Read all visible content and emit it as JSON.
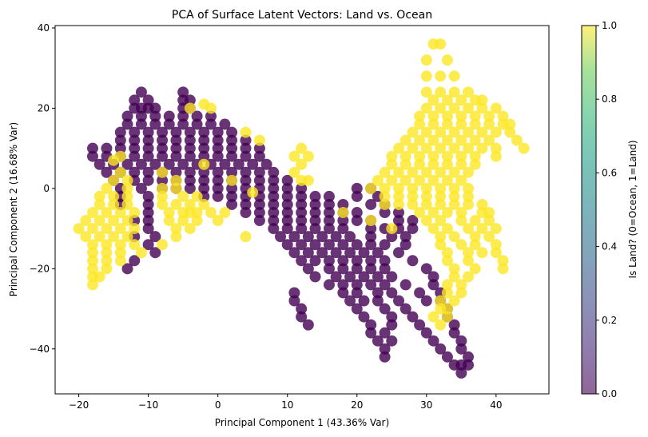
{
  "chart_data": {
    "type": "scatter",
    "title": "PCA of Surface Latent Vectors: Land vs. Ocean",
    "xlabel": "Principal Component 1 (43.36% Var)",
    "ylabel": "Principal Component 2 (16.68% Var)",
    "xlim": [
      -23.4,
      47.6
    ],
    "ylim": [
      -51.2,
      40.6
    ],
    "xticks": [
      -20,
      -10,
      0,
      10,
      20,
      30,
      40
    ],
    "yticks": [
      -40,
      -20,
      0,
      20,
      40
    ],
    "grid": false,
    "colorbar": {
      "label": "Is Land? (0=Ocean, 1=Land)",
      "range": [
        0.0,
        1.0
      ],
      "ticks": [
        "0.0",
        "0.2",
        "0.4",
        "0.6",
        "0.8",
        "1.0"
      ],
      "colormap": "viridis",
      "alpha": 0.6
    },
    "series": [
      {
        "value": 0,
        "color": "#440154",
        "rows_y_x": [
          [
            24,
            [
              -11,
              -5
            ]
          ],
          [
            22,
            [
              -12,
              -10,
              -5,
              -4
            ]
          ],
          [
            20,
            [
              -12,
              -11,
              -10,
              -9,
              -5,
              -4
            ]
          ],
          [
            18,
            [
              -13,
              -11,
              -9,
              -7,
              -5,
              -3,
              -1
            ]
          ],
          [
            16,
            [
              -13,
              -11,
              -9,
              -7,
              -5,
              -3,
              -1,
              1
            ]
          ],
          [
            14,
            [
              -14,
              -12,
              -10,
              -8,
              -6,
              -4,
              -2,
              0,
              2
            ]
          ],
          [
            12,
            [
              -14,
              -12,
              -10,
              -8,
              -6,
              -4,
              -2,
              0,
              2,
              4
            ]
          ],
          [
            10,
            [
              -18,
              -16,
              -14,
              -12,
              -10,
              -8,
              -6,
              -4,
              -2,
              0,
              2,
              4,
              6
            ]
          ],
          [
            8,
            [
              -18,
              -16,
              -14,
              -12,
              -10,
              -8,
              -6,
              -4,
              -2,
              0,
              2,
              4,
              6
            ]
          ],
          [
            6,
            [
              -17,
              -15,
              -13,
              -11,
              -9,
              -7,
              -5,
              -3,
              -1,
              1,
              3,
              5,
              7
            ]
          ],
          [
            4,
            [
              -16,
              -14,
              -12,
              -10,
              -8,
              -6,
              -4,
              -2,
              0,
              2,
              4,
              6,
              8
            ]
          ],
          [
            2,
            [
              -15,
              -12,
              -10,
              -8,
              -6,
              -4,
              -2,
              0,
              2,
              4,
              6,
              8,
              10
            ]
          ],
          [
            0,
            [
              -14,
              -11,
              -8,
              -6,
              -4,
              -2,
              0,
              2,
              4,
              6,
              8,
              10,
              12,
              20,
              22
            ]
          ],
          [
            -2,
            [
              -14,
              -10,
              -2,
              0,
              2,
              4,
              6,
              8,
              10,
              12,
              14,
              16,
              20,
              23
            ]
          ],
          [
            -4,
            [
              -14,
              -10,
              2,
              4,
              6,
              8,
              10,
              12,
              14,
              16,
              18,
              22,
              24
            ]
          ],
          [
            -6,
            [
              -10,
              4,
              6,
              8,
              10,
              12,
              14,
              16,
              18,
              20,
              24,
              26
            ]
          ],
          [
            -8,
            [
              -12,
              -10,
              6,
              8,
              10,
              12,
              14,
              16,
              18,
              20,
              22,
              26,
              28
            ]
          ],
          [
            -10,
            [
              -10,
              8,
              10,
              12,
              14,
              16,
              18,
              22,
              24,
              26,
              28
            ]
          ],
          [
            -12,
            [
              -12,
              -9,
              9,
              11,
              13,
              15,
              17,
              19,
              22,
              25,
              27
            ]
          ],
          [
            -14,
            [
              -10,
              10,
              12,
              14,
              16,
              18,
              20,
              22,
              24,
              27
            ]
          ],
          [
            -16,
            [
              -9,
              11,
              13,
              15,
              17,
              19,
              21,
              23,
              26
            ]
          ],
          [
            -18,
            [
              -12,
              12,
              14,
              16,
              18,
              20,
              22,
              24,
              28
            ]
          ],
          [
            -20,
            [
              -13,
              13,
              16,
              18,
              20,
              22,
              24,
              30
            ]
          ],
          [
            -22,
            [
              14,
              17,
              19,
              21,
              23,
              25,
              31
            ]
          ],
          [
            -24,
            [
              16,
              18,
              20,
              22,
              24,
              27,
              31
            ]
          ],
          [
            -26,
            [
              11,
              18,
              20,
              23,
              25,
              29,
              32
            ]
          ],
          [
            -28,
            [
              11,
              19,
              21,
              23,
              26,
              30,
              32
            ]
          ],
          [
            -30,
            [
              12,
              20,
              24,
              27,
              33
            ]
          ],
          [
            -32,
            [
              12,
              21,
              25,
              28,
              33
            ]
          ],
          [
            -34,
            [
              13,
              22,
              25,
              29,
              34
            ]
          ],
          [
            -36,
            [
              22,
              24,
              30,
              34
            ]
          ],
          [
            -38,
            [
              23,
              25,
              31,
              35
            ]
          ],
          [
            -40,
            [
              24,
              32,
              35
            ]
          ],
          [
            -42,
            [
              24,
              33,
              36
            ]
          ],
          [
            -44,
            [
              34,
              35,
              36
            ]
          ],
          [
            -46,
            [
              35
            ]
          ]
        ]
      },
      {
        "value": 1,
        "color": "#fde725",
        "rows_y_x": [
          [
            36,
            [
              31,
              32
            ]
          ],
          [
            32,
            [
              30,
              33
            ]
          ],
          [
            28,
            [
              30,
              32,
              34
            ]
          ],
          [
            24,
            [
              30,
              32,
              34,
              36
            ]
          ],
          [
            22,
            [
              31,
              33,
              35,
              37,
              38
            ]
          ],
          [
            21,
            [
              -2
            ]
          ],
          [
            20,
            [
              -4,
              -1,
              30,
              32,
              34,
              36,
              38,
              40
            ]
          ],
          [
            18,
            [
              29,
              31,
              33,
              35,
              37,
              39,
              41
            ]
          ],
          [
            16,
            [
              29,
              31,
              33,
              35,
              37,
              39,
              41,
              42
            ]
          ],
          [
            14,
            [
              4,
              28,
              30,
              32,
              34,
              36,
              38,
              40,
              42
            ]
          ],
          [
            12,
            [
              6,
              27,
              29,
              31,
              33,
              35,
              37,
              39,
              43
            ]
          ],
          [
            10,
            [
              12,
              26,
              28,
              30,
              32,
              34,
              36,
              38,
              40,
              44
            ]
          ],
          [
            8,
            [
              -14,
              11,
              13,
              25,
              27,
              29,
              31,
              33,
              35,
              37,
              40
            ]
          ],
          [
            7,
            [
              -15
            ]
          ],
          [
            6,
            [
              -2,
              12,
              25,
              27,
              29,
              31,
              33,
              35,
              37
            ]
          ],
          [
            4,
            [
              -14,
              -8,
              11,
              24,
              26,
              28,
              30,
              32,
              34,
              36
            ]
          ],
          [
            2,
            [
              -15,
              -13,
              -6,
              2,
              12,
              13,
              23,
              25,
              27,
              29,
              31,
              33,
              35
            ]
          ],
          [
            0,
            [
              -16,
              -13,
              -8,
              -6,
              22,
              24,
              26,
              28,
              30,
              32,
              34,
              36
            ]
          ],
          [
            -1,
            [
              5
            ]
          ],
          [
            -2,
            [
              -17,
              -15,
              -13,
              -8,
              -5,
              -3,
              24,
              26,
              28,
              30,
              32,
              34,
              36
            ]
          ],
          [
            -4,
            [
              -17,
              -15,
              -13,
              -8,
              -6,
              -4,
              -2,
              24,
              26,
              28,
              30,
              32,
              34,
              36,
              38
            ]
          ],
          [
            -6,
            [
              -18,
              -16,
              -14,
              -12,
              -7,
              -5,
              -3,
              -1,
              1,
              -4,
              18,
              29,
              31,
              33,
              35,
              38,
              39
            ]
          ],
          [
            -8,
            [
              -19,
              -17,
              -15,
              -13,
              -7,
              -5,
              -3,
              0,
              22,
              30,
              32,
              35,
              37,
              39
            ]
          ],
          [
            -10,
            [
              -20,
              -18,
              -16,
              -14,
              -12,
              -6,
              -4,
              25,
              31,
              33,
              36,
              38,
              40
            ]
          ],
          [
            -12,
            [
              -19,
              -17,
              -15,
              -13,
              -6,
              4,
              32,
              34,
              37,
              39
            ]
          ],
          [
            -14,
            [
              -18,
              -16,
              -14,
              -12,
              -8,
              32,
              35,
              37,
              40
            ]
          ],
          [
            -16,
            [
              -18,
              -16,
              -14,
              -11,
              33,
              36,
              38,
              40
            ]
          ],
          [
            -18,
            [
              -18,
              -16,
              -14,
              33,
              36,
              41
            ]
          ],
          [
            -20,
            [
              -18,
              -16,
              34,
              37,
              41
            ]
          ],
          [
            -22,
            [
              -18,
              -17,
              34,
              36
            ]
          ],
          [
            -24,
            [
              -18,
              33,
              35
            ]
          ],
          [
            -26,
            [
              33,
              35
            ]
          ],
          [
            -28,
            [
              32,
              34
            ]
          ],
          [
            -30,
            [
              32,
              33
            ]
          ],
          [
            -32,
            [
              31,
              33
            ]
          ],
          [
            -34,
            [
              32
            ]
          ]
        ]
      }
    ]
  }
}
